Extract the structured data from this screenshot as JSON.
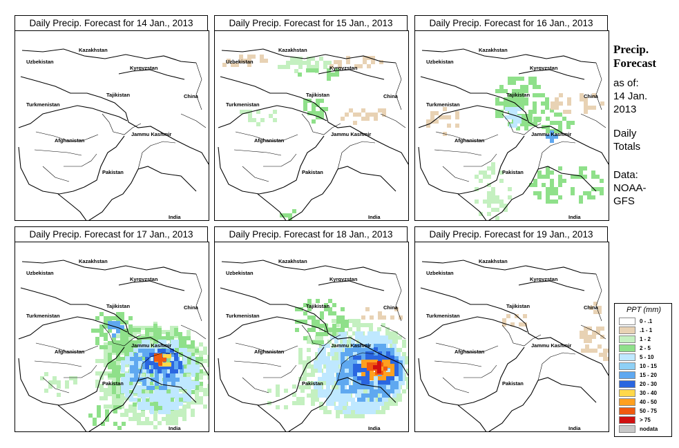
{
  "panels": [
    {
      "title": "Daily Precip. Forecast for  14 Jan., 2013",
      "precip": "none"
    },
    {
      "title": "Daily Precip. Forecast for  15 Jan., 2013",
      "precip": "light-north"
    },
    {
      "title": "Daily Precip. Forecast for  16 Jan., 2013",
      "precip": "moderate-east"
    },
    {
      "title": "Daily Precip. Forecast for  17 Jan., 2013",
      "precip": "heavy-kashmir"
    },
    {
      "title": "Daily Precip. Forecast for  18 Jan., 2013",
      "precip": "heavy-kashmir-2"
    },
    {
      "title": "Daily Precip. Forecast for  19 Jan., 2013",
      "precip": "trace"
    }
  ],
  "place_labels": {
    "kazakhstan": "Kazakhstan",
    "uzbekistan": "Uzbekistan",
    "kyrgyzstan": "Kyrgyzstan",
    "tajikistan": "Tajikistan",
    "china": "China",
    "turkmenistan": "Turkmenistan",
    "afghanistan": "Afghanistan",
    "jammu_kashmir": "Jammu Kashmir",
    "pakistan": "Pakistan",
    "india": "India"
  },
  "sidebar": {
    "title_line1": "Precip.",
    "title_line2": "Forecast",
    "asof_line1": "as of:",
    "asof_line2": "14 Jan.",
    "asof_line3": "2013",
    "totals_line1": "Daily",
    "totals_line2": "Totals",
    "data_line1": "Data:",
    "data_line2": "NOAA-",
    "data_line3": "GFS"
  },
  "legend": {
    "title": "PPT (mm)",
    "items": [
      {
        "label": "0 - .1",
        "color": "#ffffff"
      },
      {
        "label": ".1 - 1",
        "color": "#e8d2b4"
      },
      {
        "label": "1 - 2",
        "color": "#c4f0c0"
      },
      {
        "label": "2 - 5",
        "color": "#8fe08a"
      },
      {
        "label": "5 - 10",
        "color": "#bfe8ff"
      },
      {
        "label": "10 - 15",
        "color": "#8fd0f5"
      },
      {
        "label": "15 - 20",
        "color": "#5fa8f0"
      },
      {
        "label": "20 - 30",
        "color": "#2a66e0"
      },
      {
        "label": "30 - 40",
        "color": "#ffd84a"
      },
      {
        "label": "40 - 50",
        "color": "#ffa020"
      },
      {
        "label": "50 - 75",
        "color": "#f05a10"
      },
      {
        "label": "> 75",
        "color": "#d01010"
      },
      {
        "label": "nodata",
        "color": "#c8c8c8"
      }
    ]
  }
}
